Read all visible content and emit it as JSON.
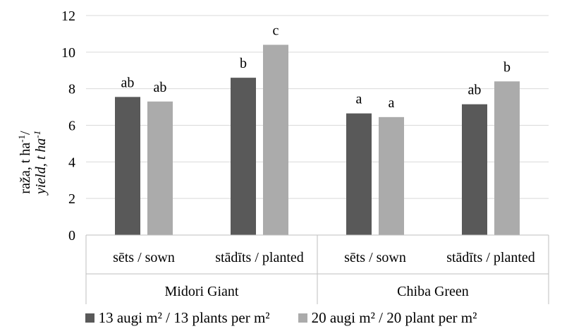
{
  "chart_data": {
    "type": "bar",
    "ylabel_line1": "raža, t ha",
    "ylabel_line1_sup": "-1",
    "ylabel_line1_suffix": "/",
    "ylabel_line2": "yield, t ha",
    "ylabel_line2_sup": "-1",
    "ylim": [
      0,
      12
    ],
    "yticks": [
      0,
      2,
      4,
      6,
      8,
      10,
      12
    ],
    "grid": true,
    "legend_position": "bottom",
    "groups": [
      {
        "label": "Midori Giant",
        "categories": [
          "sēts / sown",
          "stādīts / planted"
        ]
      },
      {
        "label": "Chiba Green",
        "categories": [
          "sēts / sown",
          "stādīts / planted"
        ]
      }
    ],
    "categories": [
      "sēts / sown",
      "stādīts / planted",
      "sēts / sown",
      "stādīts / planted"
    ],
    "series": [
      {
        "name": "13 augi m² / 13 plants per m²",
        "color": "#595959",
        "values": [
          7.55,
          8.6,
          6.65,
          7.15
        ],
        "labels": [
          "ab",
          "b",
          "a",
          "ab"
        ]
      },
      {
        "name": "20 augi m² / 20 plant per m²",
        "color": "#ababab",
        "values": [
          7.3,
          10.4,
          6.45,
          8.4
        ],
        "labels": [
          "ab",
          "c",
          "a",
          "b"
        ]
      }
    ]
  }
}
